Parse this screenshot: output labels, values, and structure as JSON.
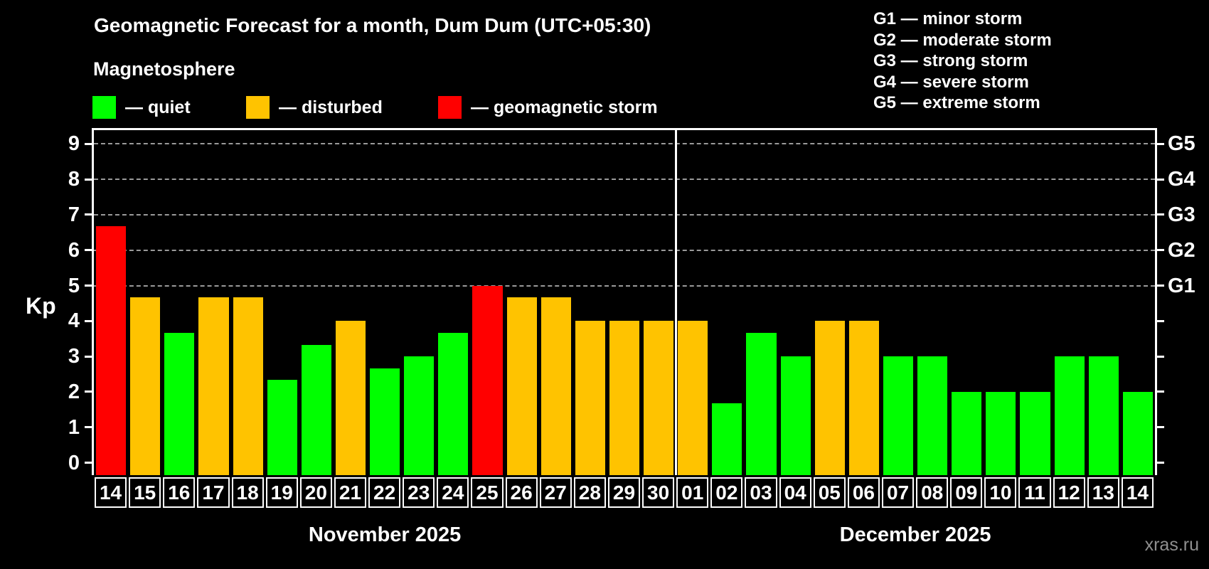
{
  "title": "Geomagnetic Forecast for a month, Dum Dum (UTC+05:30)",
  "subtitle": "Magnetosphere",
  "kp_axis_label": "Kp",
  "watermark": "xras.ru",
  "colors": {
    "quiet": "#00ff00",
    "disturbed": "#ffc300",
    "storm": "#ff0000",
    "background": "#000000",
    "axis": "#ffffff",
    "gridline": "#9a9a9a",
    "watermark": "#8f8f8f"
  },
  "legend": [
    {
      "key": "quiet",
      "label": "— quiet"
    },
    {
      "key": "disturbed",
      "label": "— disturbed"
    },
    {
      "key": "storm",
      "label": "— geomagnetic storm"
    }
  ],
  "storm_scale_legend": [
    "G1 — minor storm",
    "G2 — moderate storm",
    "G3 — strong storm",
    "G4 — severe storm",
    "G5 — extreme storm"
  ],
  "chart_data": {
    "type": "bar",
    "title": "Geomagnetic Forecast for a month, Dum Dum (UTC+05:30)",
    "ylabel": "Kp",
    "ylim": [
      0,
      9
    ],
    "yticks": [
      0,
      1,
      2,
      3,
      4,
      5,
      6,
      7,
      8,
      9
    ],
    "gridlines_at": [
      5,
      6,
      7,
      8,
      9
    ],
    "grid": "dashed horizontal at Kp 5-9 only",
    "right_axis_labels": [
      {
        "kp": 5,
        "label": "G1"
      },
      {
        "kp": 6,
        "label": "G2"
      },
      {
        "kp": 7,
        "label": "G3"
      },
      {
        "kp": 8,
        "label": "G4"
      },
      {
        "kp": 9,
        "label": "G5"
      }
    ],
    "months": [
      {
        "label": "November 2025",
        "start_index": 0,
        "days": 17
      },
      {
        "label": "December 2025",
        "start_index": 17,
        "days": 14
      }
    ],
    "bars": [
      {
        "day": "14",
        "kp": 6.67,
        "level": "storm"
      },
      {
        "day": "15",
        "kp": 4.67,
        "level": "disturbed"
      },
      {
        "day": "16",
        "kp": 3.67,
        "level": "quiet"
      },
      {
        "day": "17",
        "kp": 4.67,
        "level": "disturbed"
      },
      {
        "day": "18",
        "kp": 4.67,
        "level": "disturbed"
      },
      {
        "day": "19",
        "kp": 2.33,
        "level": "quiet"
      },
      {
        "day": "20",
        "kp": 3.33,
        "level": "quiet"
      },
      {
        "day": "21",
        "kp": 4.0,
        "level": "disturbed"
      },
      {
        "day": "22",
        "kp": 2.67,
        "level": "quiet"
      },
      {
        "day": "23",
        "kp": 3.0,
        "level": "quiet"
      },
      {
        "day": "24",
        "kp": 3.67,
        "level": "quiet"
      },
      {
        "day": "25",
        "kp": 5.0,
        "level": "storm"
      },
      {
        "day": "26",
        "kp": 4.67,
        "level": "disturbed"
      },
      {
        "day": "27",
        "kp": 4.67,
        "level": "disturbed"
      },
      {
        "day": "28",
        "kp": 4.0,
        "level": "disturbed"
      },
      {
        "day": "29",
        "kp": 4.0,
        "level": "disturbed"
      },
      {
        "day": "30",
        "kp": 4.0,
        "level": "disturbed"
      },
      {
        "day": "01",
        "kp": 4.0,
        "level": "disturbed"
      },
      {
        "day": "02",
        "kp": 1.67,
        "level": "quiet"
      },
      {
        "day": "03",
        "kp": 3.67,
        "level": "quiet"
      },
      {
        "day": "04",
        "kp": 3.0,
        "level": "quiet"
      },
      {
        "day": "05",
        "kp": 4.0,
        "level": "disturbed"
      },
      {
        "day": "06",
        "kp": 4.0,
        "level": "disturbed"
      },
      {
        "day": "07",
        "kp": 3.0,
        "level": "quiet"
      },
      {
        "day": "08",
        "kp": 3.0,
        "level": "quiet"
      },
      {
        "day": "09",
        "kp": 2.0,
        "level": "quiet"
      },
      {
        "day": "10",
        "kp": 2.0,
        "level": "quiet"
      },
      {
        "day": "11",
        "kp": 2.0,
        "level": "quiet"
      },
      {
        "day": "12",
        "kp": 3.0,
        "level": "quiet"
      },
      {
        "day": "13",
        "kp": 3.0,
        "level": "quiet"
      },
      {
        "day": "14",
        "kp": 2.0,
        "level": "quiet"
      }
    ]
  }
}
